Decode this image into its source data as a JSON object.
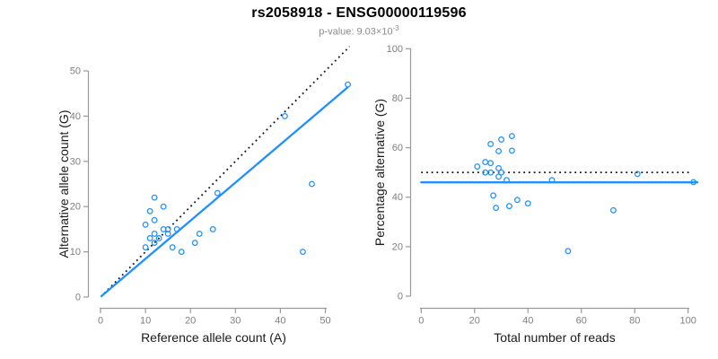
{
  "header": {
    "title": "rs2058918 - ENSG00000119596",
    "pvalue_label": "p-value: 9.03×10",
    "pvalue_exponent": "-3"
  },
  "colors": {
    "accent_blue": "#1E90FF",
    "axis_line": "#999999",
    "tick_text": "#7f7f7f",
    "label_text": "#1a1a1a",
    "subtitle_text": "#8c8c8c",
    "dotted_line": "#141414",
    "background": "#ffffff"
  },
  "chart_data": [
    {
      "type": "scatter",
      "panel": "allele-counts",
      "xlabel": "Reference allele count (A)",
      "ylabel": "Alternative allele count (G)",
      "xlim": [
        0,
        56
      ],
      "ylim": [
        0,
        56
      ],
      "xticks": [
        0,
        10,
        20,
        30,
        40,
        50
      ],
      "yticks": [
        0,
        10,
        20,
        30,
        40,
        50
      ],
      "grid": false,
      "legend": "none",
      "points": [
        [
          10,
          11
        ],
        [
          10,
          16
        ],
        [
          11,
          13
        ],
        [
          11,
          19
        ],
        [
          12,
          12
        ],
        [
          12,
          14
        ],
        [
          12,
          17
        ],
        [
          12,
          22
        ],
        [
          13,
          13
        ],
        [
          14,
          15
        ],
        [
          14,
          20
        ],
        [
          15,
          14
        ],
        [
          15,
          15
        ],
        [
          16,
          11
        ],
        [
          17,
          15
        ],
        [
          18,
          10
        ],
        [
          21,
          12
        ],
        [
          22,
          14
        ],
        [
          25,
          15
        ],
        [
          26,
          23
        ],
        [
          41,
          40
        ],
        [
          45,
          10
        ],
        [
          47,
          25
        ],
        [
          55,
          47
        ]
      ],
      "lines": [
        {
          "name": "identity-line",
          "style": "dotted",
          "x1": 0.8,
          "y1": 0.8,
          "x2": 55.4,
          "y2": 55.4
        },
        {
          "name": "fit-line",
          "style": "solid",
          "x1": 0.2,
          "y1": 0.2,
          "x2": 54.9,
          "y2": 46.3
        }
      ]
    },
    {
      "type": "scatter",
      "panel": "percentage-vs-reads",
      "xlabel": "Total number of reads",
      "ylabel": "Percentage alternative (G)",
      "xlim": [
        0,
        104
      ],
      "ylim": [
        0,
        100
      ],
      "xticks": [
        0,
        20,
        40,
        60,
        80,
        100
      ],
      "yticks": [
        0,
        20,
        40,
        60,
        80,
        100
      ],
      "grid": false,
      "legend": "none",
      "points": [
        [
          21,
          52.4
        ],
        [
          24,
          50
        ],
        [
          24,
          54.2
        ],
        [
          26,
          50
        ],
        [
          26,
          53.8
        ],
        [
          26,
          61.5
        ],
        [
          27,
          40.7
        ],
        [
          28,
          35.7
        ],
        [
          29,
          48.3
        ],
        [
          29,
          51.7
        ],
        [
          29,
          58.6
        ],
        [
          30,
          50
        ],
        [
          30,
          63.3
        ],
        [
          32,
          46.9
        ],
        [
          33,
          36.4
        ],
        [
          34,
          58.8
        ],
        [
          34,
          64.7
        ],
        [
          36,
          38.9
        ],
        [
          40,
          37.5
        ],
        [
          49,
          46.9
        ],
        [
          55,
          18.2
        ],
        [
          72,
          34.7
        ],
        [
          81,
          49.4
        ],
        [
          102,
          46.1
        ]
      ],
      "lines": [
        {
          "name": "expected-50-line",
          "style": "dotted",
          "x1": 0,
          "y1": 50,
          "x2": 100.8,
          "y2": 50
        },
        {
          "name": "fit-line",
          "style": "solid",
          "x1": 0,
          "y1": 46,
          "x2": 103.5,
          "y2": 46
        }
      ]
    }
  ]
}
